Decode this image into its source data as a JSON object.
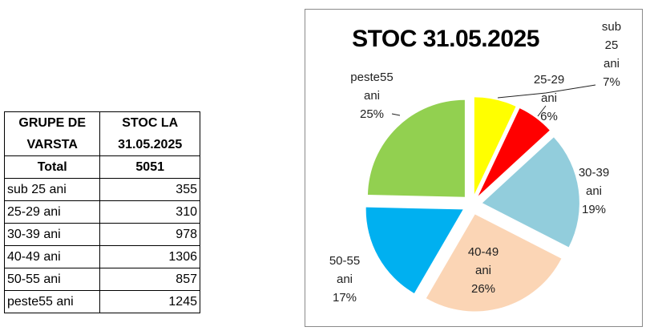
{
  "table": {
    "header_col1": [
      "GRUPE DE",
      "VARSTA"
    ],
    "header_col2": [
      "STOC LA",
      "31.05.2025"
    ],
    "total_label": "Total",
    "total_value": "5051",
    "rows": [
      {
        "label": "sub 25 ani",
        "value": "355"
      },
      {
        "label": "25-29 ani",
        "value": "310"
      },
      {
        "label": "30-39 ani",
        "value": "978"
      },
      {
        "label": "40-49 ani",
        "value": "1306"
      },
      {
        "label": "50-55 ani",
        "value": "857"
      },
      {
        "label": "peste55 ani",
        "value": "1245"
      }
    ]
  },
  "chart_data": {
    "type": "pie",
    "title": "STOC 31.05.2025",
    "categories": [
      "sub 25 ani",
      "25-29 ani",
      "30-39 ani",
      "40-49 ani",
      "50-55 ani",
      "peste55 ani"
    ],
    "values": [
      355,
      310,
      978,
      1306,
      857,
      1245
    ],
    "percent_labels": [
      "7%",
      "6%",
      "19%",
      "26%",
      "17%",
      "25%"
    ],
    "label_lines": [
      [
        "sub",
        "25",
        "ani",
        "7%"
      ],
      [
        "25-29",
        "ani",
        "6%"
      ],
      [
        "30-39",
        "ani",
        "19%"
      ],
      [
        "40-49",
        "ani",
        "26%"
      ],
      [
        "50-55",
        "ani",
        "17%"
      ],
      [
        "peste55",
        "ani",
        "25%"
      ]
    ],
    "colors": [
      "#ffff00",
      "#ff0000",
      "#92cddc",
      "#fbd5b5",
      "#00b0f0",
      "#92d050"
    ],
    "exploded": true,
    "legend": "none"
  }
}
